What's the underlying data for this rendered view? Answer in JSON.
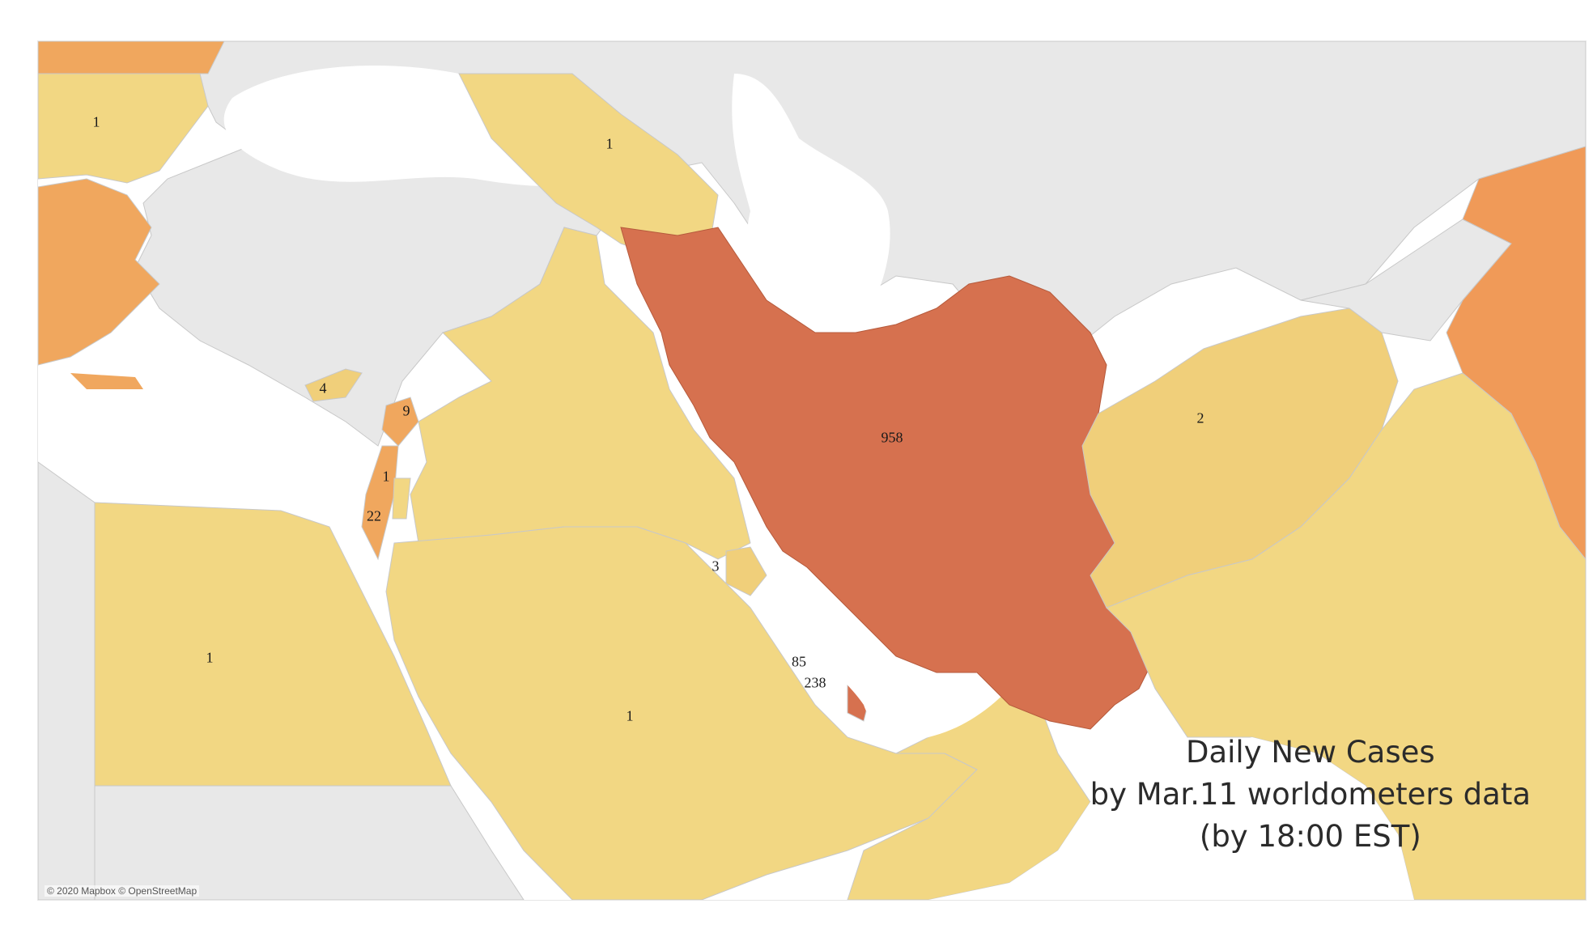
{
  "map": {
    "title_lines": [
      "Daily New Cases",
      "by Mar.11 worldometers data",
      "(by 18:00 EST)"
    ],
    "attribution": "© 2020 Mapbox © OpenStreetMap",
    "colors": {
      "water": "#ffffff",
      "no_data": "#e8e8e8",
      "low": "#f2d783",
      "low_mid": "#f0cf7a",
      "mid": "#f0a75e",
      "high": "#f09a58",
      "max": "#d6714f",
      "border": "#bfbfbf"
    },
    "labels": [
      {
        "id": "bulgaria",
        "text": "1"
      },
      {
        "id": "georgia",
        "text": "1"
      },
      {
        "id": "cyprus",
        "text": "4"
      },
      {
        "id": "lebanon",
        "text": "9"
      },
      {
        "id": "palestine",
        "text": "1"
      },
      {
        "id": "israel",
        "text": "22"
      },
      {
        "id": "iran",
        "text": "958"
      },
      {
        "id": "afghanistan",
        "text": "2"
      },
      {
        "id": "kuwait",
        "text": "3"
      },
      {
        "id": "bahrain",
        "text": "85"
      },
      {
        "id": "qatar",
        "text": "238"
      },
      {
        "id": "egypt",
        "text": "1"
      },
      {
        "id": "saudi-arabia",
        "text": "1"
      }
    ]
  }
}
